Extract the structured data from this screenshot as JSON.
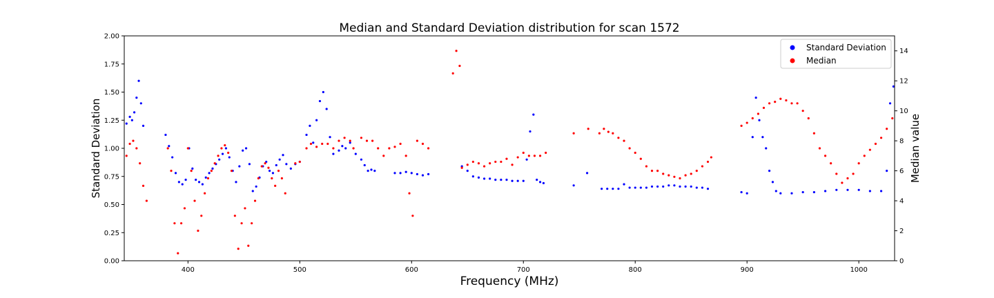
{
  "chart_data": {
    "type": "scatter",
    "title": "Median and Standard Deviation distribution for scan 1572",
    "xlabel": "Frequency (MHz)",
    "ylabel_left": "Standard Deviation",
    "ylabel_right": "Median value",
    "xlim": [
      343,
      1032
    ],
    "ylim_left": [
      0,
      2.0
    ],
    "ylim_right": [
      0,
      15
    ],
    "x_ticks": [
      400,
      500,
      600,
      700,
      800,
      900,
      1000
    ],
    "y_ticks_left": [
      0.0,
      0.25,
      0.5,
      0.75,
      1.0,
      1.25,
      1.5,
      1.75,
      2.0
    ],
    "y_ticks_left_labels": [
      "0.00",
      "0.25",
      "0.50",
      "0.75",
      "1.00",
      "1.25",
      "1.50",
      "1.75",
      "2.00"
    ],
    "y_ticks_right": [
      0,
      2,
      4,
      6,
      8,
      10,
      12,
      14
    ],
    "legend_position": "top-right",
    "grid": false,
    "series": [
      {
        "name": "Standard Deviation",
        "axis": "left",
        "color": "#0000ff",
        "x": [
          345,
          348,
          350,
          352,
          354,
          356,
          358,
          360,
          380,
          383,
          386,
          389,
          392,
          395,
          398,
          401,
          404,
          407,
          410,
          413,
          416,
          419,
          422,
          425,
          428,
          431,
          434,
          437,
          440,
          443,
          446,
          449,
          452,
          455,
          458,
          461,
          464,
          467,
          470,
          473,
          476,
          479,
          482,
          485,
          488,
          492,
          496,
          500,
          506,
          509,
          512,
          515,
          518,
          521,
          524,
          527,
          530,
          535,
          538,
          541,
          545,
          550,
          555,
          558,
          561,
          564,
          567,
          585,
          590,
          595,
          600,
          605,
          610,
          615,
          645,
          650,
          655,
          660,
          665,
          670,
          675,
          680,
          685,
          690,
          695,
          700,
          703,
          706,
          709,
          712,
          715,
          718,
          745,
          757,
          770,
          775,
          780,
          785,
          790,
          795,
          800,
          805,
          810,
          815,
          820,
          825,
          830,
          835,
          840,
          845,
          850,
          855,
          860,
          865,
          895,
          900,
          905,
          908,
          911,
          914,
          917,
          920,
          923,
          926,
          930,
          940,
          950,
          960,
          970,
          980,
          990,
          1000,
          1010,
          1020,
          1025,
          1028,
          1031
        ],
        "y": [
          1.22,
          1.28,
          1.25,
          1.32,
          1.45,
          1.6,
          1.4,
          1.2,
          1.12,
          1.02,
          0.92,
          0.78,
          0.7,
          0.68,
          0.72,
          1.0,
          0.82,
          0.72,
          0.7,
          0.68,
          0.74,
          0.78,
          0.82,
          0.86,
          0.9,
          0.95,
          1.0,
          0.92,
          0.8,
          0.7,
          0.84,
          0.98,
          1.0,
          0.86,
          0.62,
          0.66,
          0.74,
          0.84,
          0.88,
          0.8,
          0.78,
          0.85,
          0.9,
          0.94,
          0.86,
          0.82,
          0.86,
          0.88,
          1.12,
          1.2,
          1.05,
          1.25,
          1.42,
          1.5,
          1.35,
          1.1,
          0.95,
          0.98,
          1.02,
          1.0,
          1.05,
          0.95,
          0.9,
          0.85,
          0.8,
          0.81,
          0.8,
          0.78,
          0.78,
          0.79,
          0.78,
          0.77,
          0.76,
          0.77,
          0.84,
          0.8,
          0.75,
          0.74,
          0.73,
          0.73,
          0.72,
          0.72,
          0.72,
          0.71,
          0.71,
          0.71,
          0.9,
          1.15,
          1.3,
          0.72,
          0.7,
          0.69,
          0.67,
          0.78,
          0.64,
          0.64,
          0.64,
          0.64,
          0.68,
          0.65,
          0.65,
          0.65,
          0.65,
          0.66,
          0.66,
          0.66,
          0.67,
          0.67,
          0.66,
          0.66,
          0.66,
          0.65,
          0.65,
          0.64,
          0.61,
          0.6,
          1.1,
          1.45,
          1.25,
          1.1,
          1.0,
          0.8,
          0.7,
          0.62,
          0.6,
          0.6,
          0.61,
          0.61,
          0.62,
          0.63,
          0.63,
          0.63,
          0.62,
          0.62,
          0.8,
          1.4,
          1.55
        ]
      },
      {
        "name": "Median",
        "axis": "right",
        "color": "#ff0000",
        "x": [
          345,
          348,
          351,
          354,
          357,
          360,
          363,
          382,
          385,
          388,
          391,
          394,
          397,
          400,
          403,
          406,
          409,
          412,
          415,
          418,
          421,
          424,
          427,
          430,
          433,
          436,
          439,
          442,
          445,
          448,
          451,
          454,
          457,
          460,
          463,
          466,
          469,
          472,
          475,
          478,
          481,
          484,
          487,
          496,
          500,
          506,
          510,
          515,
          520,
          525,
          530,
          535,
          540,
          545,
          548,
          555,
          560,
          565,
          570,
          575,
          580,
          585,
          590,
          595,
          598,
          601,
          605,
          610,
          615,
          637,
          640,
          643,
          645,
          650,
          655,
          660,
          665,
          670,
          675,
          680,
          685,
          690,
          695,
          700,
          705,
          710,
          715,
          720,
          745,
          758,
          768,
          772,
          776,
          780,
          785,
          790,
          795,
          800,
          805,
          810,
          815,
          820,
          825,
          830,
          835,
          840,
          845,
          850,
          855,
          860,
          865,
          868,
          895,
          900,
          905,
          910,
          915,
          920,
          925,
          930,
          935,
          940,
          945,
          950,
          955,
          960,
          965,
          970,
          975,
          980,
          985,
          990,
          995,
          1000,
          1005,
          1010,
          1015,
          1020,
          1025,
          1030
        ],
        "y": [
          7.0,
          7.8,
          8.0,
          7.5,
          6.5,
          5.0,
          4.0,
          7.5,
          6.0,
          2.5,
          0.5,
          2.5,
          3.5,
          7.5,
          6.0,
          4.0,
          2.0,
          3.0,
          4.5,
          5.5,
          6.0,
          6.5,
          7.0,
          7.5,
          7.7,
          7.2,
          6.0,
          3.0,
          0.8,
          2.5,
          3.5,
          1.0,
          2.5,
          4.0,
          5.5,
          6.3,
          6.5,
          6.2,
          5.5,
          5.0,
          6.0,
          5.5,
          4.5,
          6.5,
          6.6,
          7.5,
          7.8,
          7.6,
          7.8,
          7.8,
          7.5,
          8.0,
          8.2,
          8.0,
          7.5,
          8.2,
          8.0,
          8.0,
          7.5,
          7.0,
          7.5,
          7.6,
          7.8,
          7.0,
          4.5,
          3.0,
          8.0,
          7.8,
          7.5,
          12.5,
          14.0,
          13.0,
          6.2,
          6.4,
          6.6,
          6.5,
          6.3,
          6.5,
          6.6,
          6.6,
          6.8,
          6.4,
          6.9,
          7.2,
          7.0,
          7.0,
          7.0,
          7.2,
          8.5,
          8.8,
          8.5,
          8.8,
          8.6,
          8.5,
          8.2,
          8.0,
          7.5,
          7.2,
          6.8,
          6.3,
          6.0,
          6.0,
          5.8,
          5.7,
          5.6,
          5.5,
          5.7,
          5.8,
          6.0,
          6.3,
          6.6,
          6.9,
          9.0,
          9.2,
          9.5,
          9.8,
          10.2,
          10.5,
          10.6,
          10.8,
          10.7,
          10.5,
          10.5,
          10.0,
          9.5,
          8.5,
          7.5,
          7.0,
          6.5,
          5.8,
          5.2,
          5.5,
          5.8,
          6.5,
          7.0,
          7.4,
          7.8,
          8.2,
          8.8,
          9.5
        ]
      }
    ]
  }
}
